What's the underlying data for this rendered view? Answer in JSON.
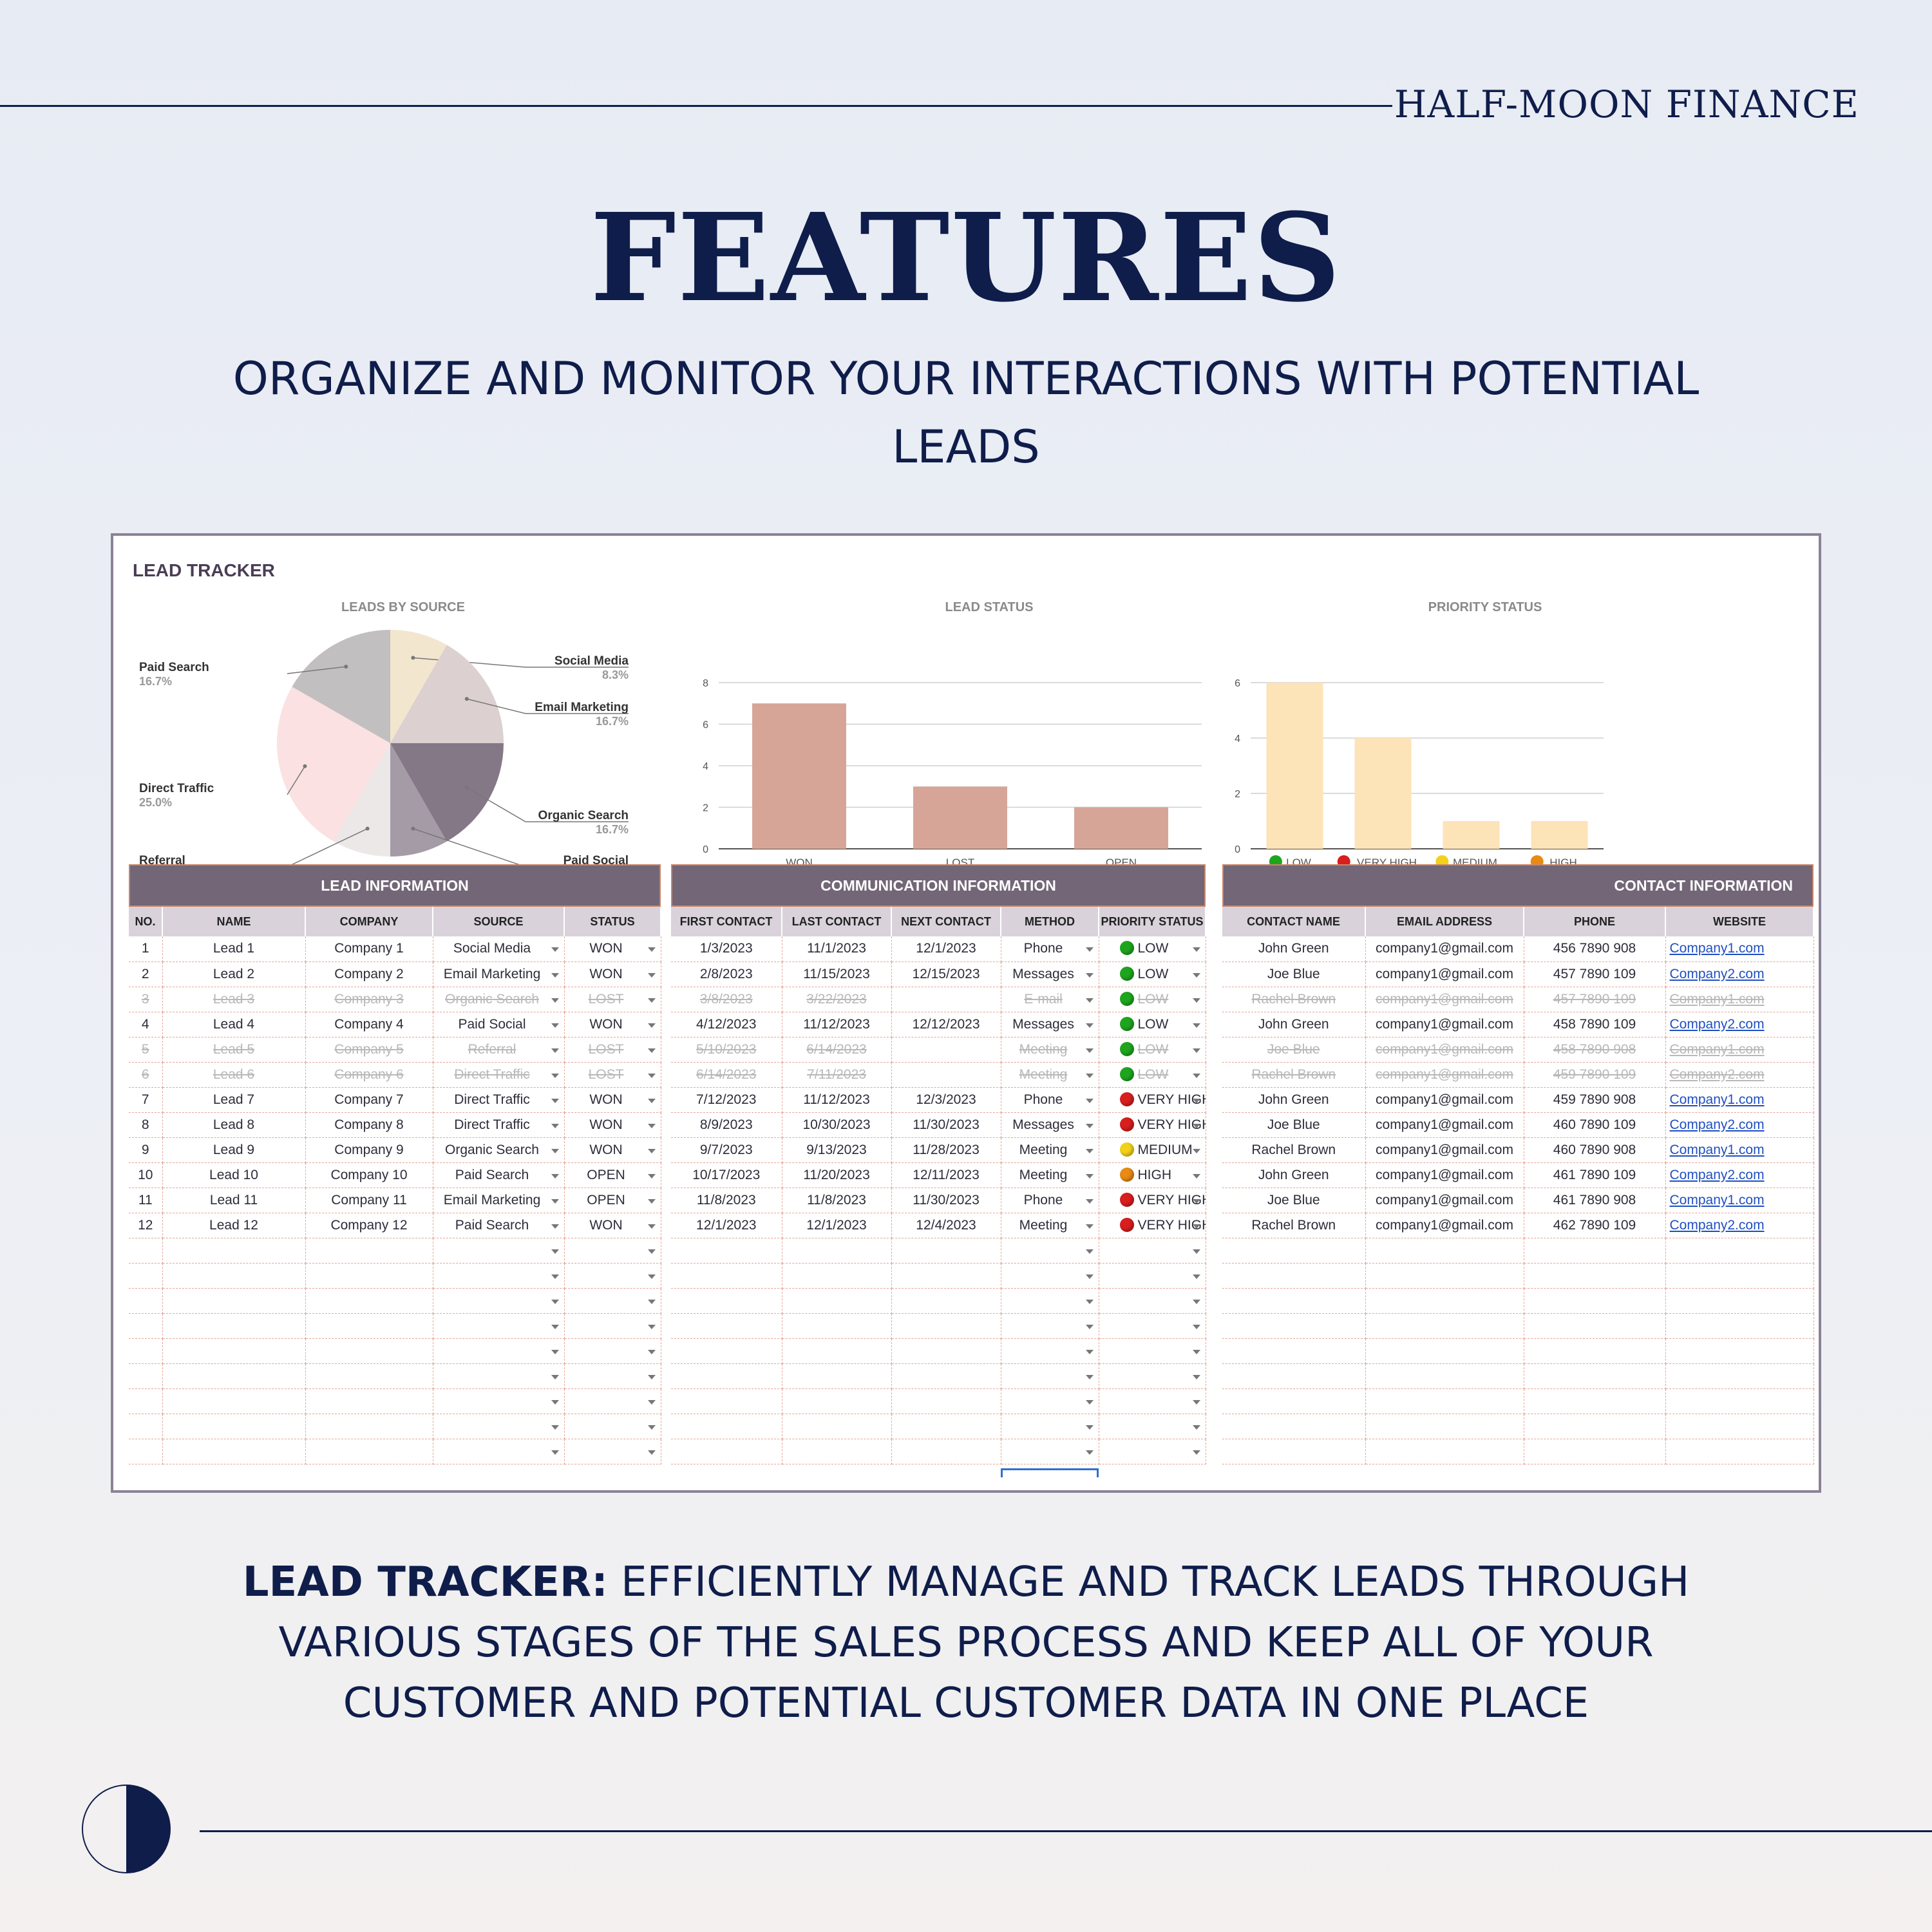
{
  "brand": "HALF-MOON FINANCE",
  "title": "FEATURES",
  "subtitle": "ORGANIZE AND MONITOR YOUR INTERACTIONS WITH POTENTIAL LEADS",
  "description": {
    "bold": "LEAD TRACKER:",
    "text": " EFFICIENTLY MANAGE AND TRACK LEADS THROUGH VARIOUS STAGES OF THE SALES PROCESS AND KEEP ALL OF YOUR CUSTOMER AND POTENTIAL CUSTOMER DATA IN ONE PLACE"
  },
  "colors": {
    "navy": "#0f1d4b",
    "header_bg": "#726677",
    "subheader_bg": "#d9d2db",
    "won_bar": "#d6a598",
    "priority_bar": "#fde3b8",
    "low": "#1ea51e",
    "very_high": "#d81e1e",
    "medium": "#f2d11a",
    "high": "#e88a14"
  },
  "sheet": {
    "title": "LEAD TRACKER",
    "sections": {
      "lead": "LEAD INFORMATION",
      "comm": "COMMUNICATION INFORMATION",
      "contact": "CONTACT INFORMATION"
    },
    "lead_columns": [
      "NO.",
      "NAME",
      "COMPANY",
      "SOURCE",
      "STATUS"
    ],
    "comm_columns": [
      "FIRST CONTACT",
      "LAST CONTACT",
      "NEXT CONTACT",
      "METHOD",
      "PRIORITY STATUS"
    ],
    "contact_columns": [
      "CONTACT NAME",
      "EMAIL ADDRESS",
      "PHONE",
      "WEBSITE"
    ],
    "rows": [
      {
        "no": "1",
        "name": "Lead 1",
        "company": "Company 1",
        "source": "Social Media",
        "status": "WON",
        "first": "1/3/2023",
        "last": "11/1/2023",
        "next": "12/1/2023",
        "method": "Phone",
        "priority": "LOW",
        "pcolor": "low",
        "contact": "John Green",
        "email": "company1@gmail.com",
        "phone": "456 7890 908",
        "website": "Company1.com",
        "struck": false
      },
      {
        "no": "2",
        "name": "Lead 2",
        "company": "Company 2",
        "source": "Email Marketing",
        "status": "WON",
        "first": "2/8/2023",
        "last": "11/15/2023",
        "next": "12/15/2023",
        "method": "Messages",
        "priority": "LOW",
        "pcolor": "low",
        "contact": "Joe Blue",
        "email": "company1@gmail.com",
        "phone": "457 7890 109",
        "website": "Company2.com",
        "struck": false
      },
      {
        "no": "3",
        "name": "Lead 3",
        "company": "Company 3",
        "source": "Organic Search",
        "status": "LOST",
        "first": "3/8/2023",
        "last": "3/22/2023",
        "next": "",
        "method": "E-mail",
        "priority": "LOW",
        "pcolor": "low",
        "contact": "Rachel Brown",
        "email": "company1@gmail.com",
        "phone": "457 7890 109",
        "website": "Company1.com",
        "struck": true
      },
      {
        "no": "4",
        "name": "Lead 4",
        "company": "Company 4",
        "source": "Paid Social",
        "status": "WON",
        "first": "4/12/2023",
        "last": "11/12/2023",
        "next": "12/12/2023",
        "method": "Messages",
        "priority": "LOW",
        "pcolor": "low",
        "contact": "John Green",
        "email": "company1@gmail.com",
        "phone": "458 7890 109",
        "website": "Company2.com",
        "struck": false
      },
      {
        "no": "5",
        "name": "Lead 5",
        "company": "Company 5",
        "source": "Referral",
        "status": "LOST",
        "first": "5/10/2023",
        "last": "6/14/2023",
        "next": "",
        "method": "Meeting",
        "priority": "LOW",
        "pcolor": "low",
        "contact": "Joe Blue",
        "email": "company1@gmail.com",
        "phone": "458 7890 908",
        "website": "Company1.com",
        "struck": true
      },
      {
        "no": "6",
        "name": "Lead 6",
        "company": "Company 6",
        "source": "Direct Traffic",
        "status": "LOST",
        "first": "6/14/2023",
        "last": "7/11/2023",
        "next": "",
        "method": "Meeting",
        "priority": "LOW",
        "pcolor": "low",
        "contact": "Rachel Brown",
        "email": "company1@gmail.com",
        "phone": "459 7890 109",
        "website": "Company2.com",
        "struck": true
      },
      {
        "no": "7",
        "name": "Lead 7",
        "company": "Company 7",
        "source": "Direct Traffic",
        "status": "WON",
        "first": "7/12/2023",
        "last": "11/12/2023",
        "next": "12/3/2023",
        "method": "Phone",
        "priority": "VERY HIGH",
        "pcolor": "very_high",
        "contact": "John Green",
        "email": "company1@gmail.com",
        "phone": "459 7890 908",
        "website": "Company1.com",
        "struck": false
      },
      {
        "no": "8",
        "name": "Lead 8",
        "company": "Company 8",
        "source": "Direct Traffic",
        "status": "WON",
        "first": "8/9/2023",
        "last": "10/30/2023",
        "next": "11/30/2023",
        "method": "Messages",
        "priority": "VERY HIGH",
        "pcolor": "very_high",
        "contact": "Joe Blue",
        "email": "company1@gmail.com",
        "phone": "460 7890 109",
        "website": "Company2.com",
        "struck": false
      },
      {
        "no": "9",
        "name": "Lead 9",
        "company": "Company 9",
        "source": "Organic Search",
        "status": "WON",
        "first": "9/7/2023",
        "last": "9/13/2023",
        "next": "11/28/2023",
        "method": "Meeting",
        "priority": "MEDIUM",
        "pcolor": "medium",
        "contact": "Rachel Brown",
        "email": "company1@gmail.com",
        "phone": "460 7890 908",
        "website": "Company1.com",
        "struck": false
      },
      {
        "no": "10",
        "name": "Lead 10",
        "company": "Company 10",
        "source": "Paid Search",
        "status": "OPEN",
        "first": "10/17/2023",
        "last": "11/20/2023",
        "next": "12/11/2023",
        "method": "Meeting",
        "priority": "HIGH",
        "pcolor": "high",
        "contact": "John Green",
        "email": "company1@gmail.com",
        "phone": "461 7890 109",
        "website": "Company2.com",
        "struck": false
      },
      {
        "no": "11",
        "name": "Lead 11",
        "company": "Company 11",
        "source": "Email Marketing",
        "status": "OPEN",
        "first": "11/8/2023",
        "last": "11/8/2023",
        "next": "11/30/2023",
        "method": "Phone",
        "priority": "VERY HIGH",
        "pcolor": "very_high",
        "contact": "Joe Blue",
        "email": "company1@gmail.com",
        "phone": "461 7890 908",
        "website": "Company1.com",
        "struck": false
      },
      {
        "no": "12",
        "name": "Lead 12",
        "company": "Company 12",
        "source": "Paid Search",
        "status": "WON",
        "first": "12/1/2023",
        "last": "12/1/2023",
        "next": "12/4/2023",
        "method": "Meeting",
        "priority": "VERY HIGH",
        "pcolor": "very_high",
        "contact": "Rachel Brown",
        "email": "company1@gmail.com",
        "phone": "462 7890 109",
        "website": "Company2.com",
        "struck": false
      }
    ]
  },
  "chart_data": [
    {
      "type": "pie",
      "title": "LEADS BY SOURCE",
      "slices": [
        {
          "name": "Social Media",
          "label": "8.3%",
          "value": 8.3,
          "color": "#f3e6cf"
        },
        {
          "name": "Email Marketing",
          "label": "16.7%",
          "value": 16.7,
          "color": "#dcd0d0"
        },
        {
          "name": "Organic Search",
          "label": "16.7%",
          "value": 16.7,
          "color": "#857886"
        },
        {
          "name": "Paid Social",
          "label": "8.3%",
          "value": 8.3,
          "color": "#a59ba6"
        },
        {
          "name": "Referral",
          "label": "8.3%",
          "value": 8.3,
          "color": "#ece8e8"
        },
        {
          "name": "Direct Traffic",
          "label": "25.0%",
          "value": 25.0,
          "color": "#fbe1e1"
        },
        {
          "name": "Paid Search",
          "label": "16.7%",
          "value": 16.7,
          "color": "#c2bfc0"
        }
      ]
    },
    {
      "type": "bar",
      "title": "LEAD STATUS",
      "categories": [
        "WON",
        "LOST",
        "OPEN"
      ],
      "values": [
        7,
        3,
        2
      ],
      "ylim": [
        0,
        8
      ],
      "yticks": [
        "0",
        "2",
        "4",
        "6",
        "8"
      ],
      "grid": true
    },
    {
      "type": "bar",
      "title": "PRIORITY STATUS",
      "categories": [
        "LOW",
        "VERY HIGH",
        "MEDIUM",
        "HIGH"
      ],
      "category_icons": [
        "low",
        "very_high",
        "medium",
        "high"
      ],
      "values": [
        6,
        4,
        1,
        1
      ],
      "ylim": [
        0,
        6
      ],
      "yticks": [
        "0",
        "2",
        "4",
        "6"
      ],
      "grid": true
    }
  ]
}
